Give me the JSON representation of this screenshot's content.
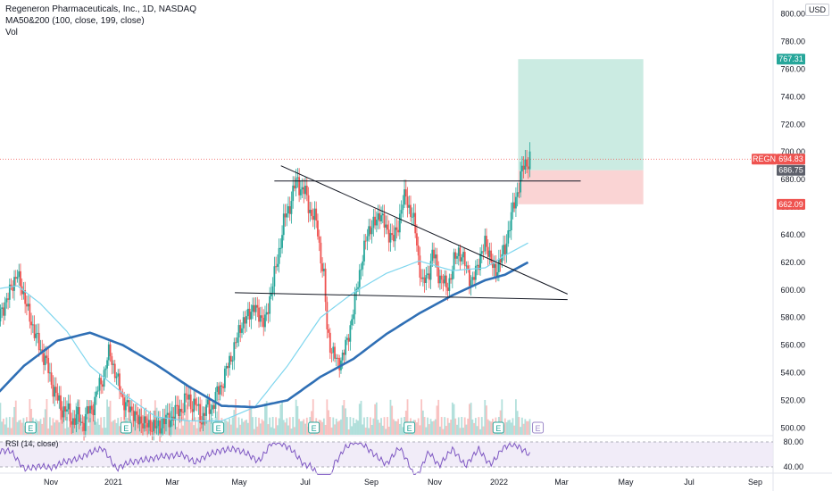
{
  "legend": {
    "title": "Regeneron Pharmaceuticals, Inc., 1D, NASDAQ",
    "ma_label": "MA50&200 (100, close, 199, close)",
    "vol_label": "Vol"
  },
  "currency": "USD",
  "rsi_label": "RSI (14, close)",
  "colors": {
    "up": "#26a69a",
    "down": "#ef5350",
    "ma_fast": "#7fd6ee",
    "ma_slow": "#2f6fb5",
    "target_zone": "#b9e4d8",
    "stop_zone": "#f8c6c6",
    "rsi_line": "#7e57c2"
  },
  "chart_data": {
    "type": "candlestick",
    "title": "Regeneron Pharmaceuticals, Inc., 1D, NASDAQ",
    "ylim": [
      495,
      805
    ],
    "y_ticks": [
      "800.00",
      "780.00",
      "760.00",
      "740.00",
      "720.00",
      "700.00",
      "680.00",
      "660.00",
      "640.00",
      "620.00",
      "600.00",
      "580.00",
      "560.00",
      "540.00",
      "520.00",
      "500.00"
    ],
    "x_ticks": [
      "Nov",
      "2021",
      "Mar",
      "May",
      "Jul",
      "Sep",
      "Nov",
      "2022",
      "Mar",
      "May",
      "Jul",
      "Sep"
    ],
    "price_path": [
      {
        "m": 0,
        "p": 565
      },
      {
        "m": 0.5,
        "p": 595
      },
      {
        "m": 0.8,
        "p": 612
      },
      {
        "m": 1.3,
        "p": 570
      },
      {
        "m": 1.7,
        "p": 545
      },
      {
        "m": 2.0,
        "p": 520
      },
      {
        "m": 2.4,
        "p": 508
      },
      {
        "m": 2.8,
        "p": 505
      },
      {
        "m": 3.0,
        "p": 512
      },
      {
        "m": 3.3,
        "p": 530
      },
      {
        "m": 3.6,
        "p": 555
      },
      {
        "m": 4.0,
        "p": 520
      },
      {
        "m": 4.5,
        "p": 505
      },
      {
        "m": 5.0,
        "p": 500
      },
      {
        "m": 5.6,
        "p": 510
      },
      {
        "m": 6.0,
        "p": 522
      },
      {
        "m": 6.4,
        "p": 508
      },
      {
        "m": 6.8,
        "p": 520
      },
      {
        "m": 7.2,
        "p": 545
      },
      {
        "m": 7.6,
        "p": 575
      },
      {
        "m": 8.0,
        "p": 588
      },
      {
        "m": 8.3,
        "p": 575
      },
      {
        "m": 8.6,
        "p": 610
      },
      {
        "m": 8.9,
        "p": 650
      },
      {
        "m": 9.3,
        "p": 680
      },
      {
        "m": 9.6,
        "p": 665
      },
      {
        "m": 9.9,
        "p": 645
      },
      {
        "m": 10.1,
        "p": 610
      },
      {
        "m": 10.2,
        "p": 570
      },
      {
        "m": 10.5,
        "p": 545
      },
      {
        "m": 10.8,
        "p": 560
      },
      {
        "m": 11.1,
        "p": 600
      },
      {
        "m": 11.4,
        "p": 640
      },
      {
        "m": 11.8,
        "p": 655
      },
      {
        "m": 12.2,
        "p": 635
      },
      {
        "m": 12.6,
        "p": 670
      },
      {
        "m": 12.9,
        "p": 640
      },
      {
        "m": 13.1,
        "p": 600
      },
      {
        "m": 13.4,
        "p": 625
      },
      {
        "m": 13.8,
        "p": 600
      },
      {
        "m": 14.2,
        "p": 630
      },
      {
        "m": 14.6,
        "p": 605
      },
      {
        "m": 15.0,
        "p": 635
      },
      {
        "m": 15.3,
        "p": 612
      },
      {
        "m": 15.6,
        "p": 630
      },
      {
        "m": 15.9,
        "p": 665
      },
      {
        "m": 16.2,
        "p": 692
      },
      {
        "m": 16.4,
        "p": 697
      }
    ],
    "ma_fast": [
      {
        "m": 0,
        "p": 600
      },
      {
        "m": 0.8,
        "p": 603
      },
      {
        "m": 1.5,
        "p": 590
      },
      {
        "m": 2.3,
        "p": 570
      },
      {
        "m": 3.0,
        "p": 545
      },
      {
        "m": 4.0,
        "p": 525
      },
      {
        "m": 5.0,
        "p": 508
      },
      {
        "m": 6.0,
        "p": 505
      },
      {
        "m": 7.0,
        "p": 505
      },
      {
        "m": 8.0,
        "p": 515
      },
      {
        "m": 9.0,
        "p": 545
      },
      {
        "m": 10.0,
        "p": 580
      },
      {
        "m": 11.0,
        "p": 598
      },
      {
        "m": 12.0,
        "p": 612
      },
      {
        "m": 13.0,
        "p": 621
      },
      {
        "m": 14.0,
        "p": 614
      },
      {
        "m": 15.0,
        "p": 616
      },
      {
        "m": 15.6,
        "p": 625
      },
      {
        "m": 16.3,
        "p": 634
      }
    ],
    "ma_slow": [
      {
        "m": 0,
        "p": 520
      },
      {
        "m": 1.0,
        "p": 545
      },
      {
        "m": 2.0,
        "p": 563
      },
      {
        "m": 3.0,
        "p": 569
      },
      {
        "m": 4.0,
        "p": 560
      },
      {
        "m": 5.0,
        "p": 546
      },
      {
        "m": 6.0,
        "p": 530
      },
      {
        "m": 7.0,
        "p": 516
      },
      {
        "m": 8.0,
        "p": 515
      },
      {
        "m": 9.0,
        "p": 520
      },
      {
        "m": 10.0,
        "p": 537
      },
      {
        "m": 11.0,
        "p": 550
      },
      {
        "m": 12.0,
        "p": 568
      },
      {
        "m": 13.0,
        "p": 583
      },
      {
        "m": 14.0,
        "p": 596
      },
      {
        "m": 15.0,
        "p": 607
      },
      {
        "m": 15.6,
        "p": 611
      },
      {
        "m": 16.3,
        "p": 620
      }
    ],
    "trendlines": [
      {
        "name": "resistance",
        "from": {
          "m": 8.8,
          "p": 690
        },
        "to": {
          "m": 17.5,
          "p": 597
        }
      },
      {
        "name": "support",
        "from": {
          "m": 7.4,
          "p": 598
        },
        "to": {
          "m": 17.5,
          "p": 593
        }
      },
      {
        "name": "breakout-level",
        "from": {
          "m": 8.6,
          "p": 679
        },
        "to": {
          "m": 17.9,
          "p": 679
        }
      }
    ],
    "position": {
      "start_m": 16.0,
      "end_m": 19.8,
      "target": 767.31,
      "entry": 686.75,
      "stop": 662.09
    },
    "last_price": 694.83,
    "last_price_symbol": "REGN",
    "price_labels": {
      "target": "767.31",
      "last": "694.83",
      "entry": "686.75",
      "stop": "662.09"
    },
    "earnings_markers": [
      {
        "m": 1.2,
        "label": "E"
      },
      {
        "m": 4.1,
        "label": "E"
      },
      {
        "m": 6.9,
        "label": "E"
      },
      {
        "m": 9.8,
        "label": "E"
      },
      {
        "m": 12.7,
        "label": "E"
      },
      {
        "m": 15.4,
        "label": "E"
      },
      {
        "m": 16.6,
        "label": "E"
      }
    ],
    "rsi": {
      "upper": 80.0,
      "lower": 40.0,
      "upper_label": "80.00",
      "lower_label": "40.00"
    }
  }
}
